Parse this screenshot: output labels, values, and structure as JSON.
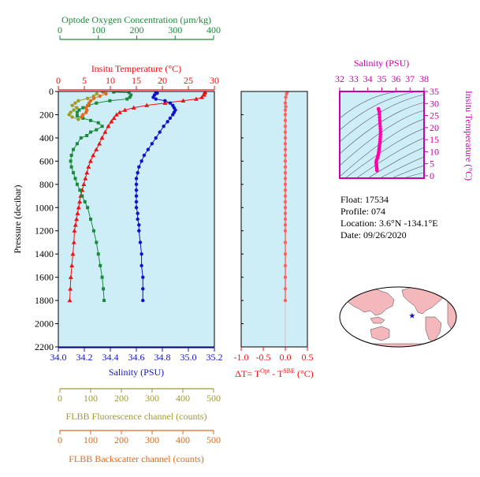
{
  "info": {
    "float": "Float:  17534",
    "profile": "Profile:  074",
    "location": "Location:  3.6°N  -134.1°E",
    "date": "Date:  09/26/2020"
  },
  "chart_data": [
    {
      "type": "line",
      "name": "profile",
      "ylabel": "Pressure (decibar)",
      "ylim": [
        2200,
        0
      ],
      "yticks": [
        0,
        200,
        400,
        600,
        800,
        1000,
        1200,
        1400,
        1600,
        1800,
        2000,
        2200
      ],
      "background": "#cdeef7",
      "axes": {
        "oxygen": {
          "label": "Optode Oxygen Concentration (µm/kg)",
          "lim": [
            0,
            400
          ],
          "ticks": [
            0,
            100,
            200,
            300,
            400
          ],
          "color": "#1a8a3a"
        },
        "temperature": {
          "label": "Insitu Temperature (°C)",
          "lim": [
            0,
            30
          ],
          "ticks": [
            0,
            5,
            10,
            15,
            20,
            25,
            30
          ],
          "color": "#ee1111"
        },
        "salinity": {
          "label": "Salinity (PSU)",
          "lim": [
            34.0,
            35.2
          ],
          "ticks": [
            "34.0",
            "34.2",
            "34.4",
            "34.6",
            "34.8",
            "35.0",
            "35.2"
          ],
          "color": "#1111cc"
        },
        "fluorescence": {
          "label": "FLBB Fluorescence channel (counts)",
          "lim": [
            0,
            500
          ],
          "ticks": [
            0,
            100,
            200,
            300,
            400,
            500
          ],
          "color": "#a09a2a"
        },
        "backscatter": {
          "label": "FLBB Backscatter channel (counts)",
          "lim": [
            0,
            500
          ],
          "ticks": [
            0,
            100,
            200,
            300,
            400,
            500
          ],
          "color": "#e06a1a"
        }
      },
      "series": [
        {
          "name": "Insitu Temperature",
          "axis": "temperature",
          "marker": "triangle",
          "points": [
            [
              28.2,
              5
            ],
            [
              28.1,
              15
            ],
            [
              28.0,
              30
            ],
            [
              27.6,
              50
            ],
            [
              26.5,
              65
            ],
            [
              24.0,
              80
            ],
            [
              20.5,
              100
            ],
            [
              17.0,
              120
            ],
            [
              14.5,
              140
            ],
            [
              12.8,
              160
            ],
            [
              11.8,
              180
            ],
            [
              11.2,
              200
            ],
            [
              10.7,
              230
            ],
            [
              10.2,
              260
            ],
            [
              9.6,
              300
            ],
            [
              9.0,
              350
            ],
            [
              8.4,
              400
            ],
            [
              7.9,
              450
            ],
            [
              7.3,
              500
            ],
            [
              6.7,
              550
            ],
            [
              6.2,
              600
            ],
            [
              5.8,
              650
            ],
            [
              5.5,
              700
            ],
            [
              5.2,
              750
            ],
            [
              4.9,
              800
            ],
            [
              4.6,
              850
            ],
            [
              4.3,
              900
            ],
            [
              4.1,
              950
            ],
            [
              3.9,
              1000
            ],
            [
              3.7,
              1050
            ],
            [
              3.5,
              1100
            ],
            [
              3.3,
              1150
            ],
            [
              3.1,
              1200
            ],
            [
              3.0,
              1300
            ],
            [
              2.8,
              1400
            ],
            [
              2.6,
              1500
            ],
            [
              2.4,
              1600
            ],
            [
              2.3,
              1700
            ],
            [
              2.2,
              1800
            ]
          ]
        },
        {
          "name": "Salinity",
          "axis": "salinity",
          "marker": "circle",
          "points": [
            [
              34.75,
              5
            ],
            [
              34.76,
              15
            ],
            [
              34.74,
              30
            ],
            [
              34.73,
              50
            ],
            [
              34.75,
              65
            ],
            [
              34.82,
              80
            ],
            [
              34.86,
              100
            ],
            [
              34.88,
              120
            ],
            [
              34.89,
              140
            ],
            [
              34.9,
              160
            ],
            [
              34.89,
              180
            ],
            [
              34.88,
              200
            ],
            [
              34.86,
              230
            ],
            [
              34.84,
              260
            ],
            [
              34.81,
              300
            ],
            [
              34.78,
              350
            ],
            [
              34.75,
              400
            ],
            [
              34.72,
              450
            ],
            [
              34.69,
              500
            ],
            [
              34.66,
              550
            ],
            [
              34.64,
              600
            ],
            [
              34.62,
              650
            ],
            [
              34.61,
              700
            ],
            [
              34.6,
              750
            ],
            [
              34.6,
              800
            ],
            [
              34.6,
              850
            ],
            [
              34.6,
              900
            ],
            [
              34.6,
              950
            ],
            [
              34.6,
              1000
            ],
            [
              34.61,
              1050
            ],
            [
              34.61,
              1100
            ],
            [
              34.62,
              1150
            ],
            [
              34.62,
              1200
            ],
            [
              34.63,
              1300
            ],
            [
              34.64,
              1400
            ],
            [
              34.64,
              1500
            ],
            [
              34.65,
              1600
            ],
            [
              34.65,
              1700
            ],
            [
              34.65,
              1800
            ]
          ]
        },
        {
          "name": "Optode Oxygen",
          "axis": "oxygen",
          "marker": "square",
          "points": [
            [
              140,
              5
            ],
            [
              180,
              10
            ],
            [
              185,
              30
            ],
            [
              182,
              50
            ],
            [
              175,
              65
            ],
            [
              130,
              80
            ],
            [
              95,
              100
            ],
            [
              75,
              120
            ],
            [
              60,
              140
            ],
            [
              50,
              160
            ],
            [
              45,
              180
            ],
            [
              45,
              210
            ],
            [
              60,
              230
            ],
            [
              80,
              250
            ],
            [
              100,
              270
            ],
            [
              110,
              300
            ],
            [
              95,
              330
            ],
            [
              80,
              350
            ],
            [
              70,
              380
            ],
            [
              55,
              400
            ],
            [
              45,
              450
            ],
            [
              35,
              500
            ],
            [
              30,
              550
            ],
            [
              28,
              600
            ],
            [
              30,
              650
            ],
            [
              35,
              700
            ],
            [
              40,
              750
            ],
            [
              45,
              800
            ],
            [
              52,
              850
            ],
            [
              58,
              900
            ],
            [
              65,
              950
            ],
            [
              72,
              1000
            ],
            [
              80,
              1100
            ],
            [
              88,
              1200
            ],
            [
              95,
              1300
            ],
            [
              100,
              1400
            ],
            [
              105,
              1500
            ],
            [
              110,
              1600
            ],
            [
              113,
              1700
            ],
            [
              115,
              1800
            ]
          ]
        },
        {
          "name": "FLBB Fluorescence",
          "axis": "fluorescence",
          "marker": "circle",
          "points": [
            [
              120,
              20
            ],
            [
              110,
              40
            ],
            [
              90,
              60
            ],
            [
              60,
              80
            ],
            [
              50,
              100
            ],
            [
              40,
              120
            ],
            [
              55,
              140
            ],
            [
              45,
              160
            ],
            [
              35,
              180
            ],
            [
              30,
              200
            ],
            [
              40,
              220
            ],
            [
              60,
              240
            ]
          ]
        },
        {
          "name": "FLBB Backscatter",
          "axis": "backscatter",
          "marker": "circle",
          "points": [
            [
              140,
              5
            ],
            [
              150,
              20
            ],
            [
              130,
              40
            ],
            [
              110,
              60
            ],
            [
              100,
              80
            ],
            [
              95,
              100
            ],
            [
              90,
              120
            ],
            [
              85,
              140
            ],
            [
              88,
              160
            ],
            [
              85,
              180
            ],
            [
              75,
              200
            ],
            [
              70,
              220
            ]
          ]
        }
      ]
    },
    {
      "type": "line",
      "name": "delta-t",
      "xlabel": "ΔT= T^Opt - T^SBE (°C)",
      "xlabel_parts": [
        "ΔT= T",
        "Opt",
        " - T",
        "SBE",
        " (°C)"
      ],
      "xlim": [
        -1.0,
        0.5
      ],
      "xticks": [
        "-1.0",
        "-0.5",
        "0.0",
        "0.5"
      ],
      "ylim": [
        2200,
        0
      ],
      "series": [
        {
          "name": "ΔT",
          "color": "#ff6060",
          "points": [
            [
              0.05,
              0
            ],
            [
              0.03,
              20
            ],
            [
              0.01,
              50
            ],
            [
              0.0,
              100
            ],
            [
              0.01,
              130
            ],
            [
              0.0,
              160
            ],
            [
              0.0,
              200
            ],
            [
              0.0,
              250
            ],
            [
              0.0,
              300
            ],
            [
              0.0,
              350
            ],
            [
              0.0,
              400
            ],
            [
              0.0,
              450
            ],
            [
              0.0,
              500
            ],
            [
              0.0,
              550
            ],
            [
              0.0,
              600
            ],
            [
              0.0,
              650
            ],
            [
              0.0,
              700
            ],
            [
              0.0,
              750
            ],
            [
              0.0,
              800
            ],
            [
              0.0,
              850
            ],
            [
              0.0,
              900
            ],
            [
              0.0,
              950
            ],
            [
              0.0,
              1000
            ],
            [
              0.0,
              1050
            ],
            [
              0.0,
              1100
            ],
            [
              0.0,
              1150
            ],
            [
              0.0,
              1200
            ],
            [
              0.0,
              1300
            ],
            [
              0.0,
              1400
            ],
            [
              0.0,
              1500
            ],
            [
              0.0,
              1600
            ],
            [
              0.0,
              1700
            ],
            [
              0.0,
              1800
            ]
          ]
        }
      ]
    },
    {
      "type": "scatter",
      "name": "ts-diagram",
      "xlabel": "Salinity (PSU)",
      "ylabel": "Insitu Temperature (°C)",
      "xlim": [
        32,
        38
      ],
      "xticks": [
        32,
        33,
        34,
        35,
        36,
        37,
        38
      ],
      "ylim": [
        -1,
        35
      ],
      "yticks": [
        0,
        5,
        10,
        15,
        20,
        25,
        30,
        35
      ],
      "color": "#ff00aa",
      "points": [
        [
          34.65,
          2.2
        ],
        [
          34.65,
          2.6
        ],
        [
          34.64,
          3.0
        ],
        [
          34.63,
          3.5
        ],
        [
          34.62,
          4.0
        ],
        [
          34.61,
          4.6
        ],
        [
          34.6,
          5.2
        ],
        [
          34.6,
          5.8
        ],
        [
          34.62,
          6.4
        ],
        [
          34.66,
          7.0
        ],
        [
          34.7,
          7.6
        ],
        [
          34.72,
          8.2
        ],
        [
          34.75,
          8.8
        ],
        [
          34.77,
          9.5
        ],
        [
          34.79,
          10.2
        ],
        [
          34.8,
          11.0
        ],
        [
          34.82,
          11.8
        ],
        [
          34.83,
          12.6
        ],
        [
          34.85,
          13.4
        ],
        [
          34.87,
          14.3
        ],
        [
          34.88,
          15.2
        ],
        [
          34.89,
          16.2
        ],
        [
          34.9,
          17.2
        ],
        [
          34.9,
          18.3
        ],
        [
          34.89,
          19.5
        ],
        [
          34.88,
          20.6
        ],
        [
          34.86,
          21.8
        ],
        [
          34.85,
          23.0
        ],
        [
          34.84,
          24.2
        ],
        [
          34.83,
          25.4
        ],
        [
          34.82,
          26.5
        ],
        [
          34.78,
          27.3
        ],
        [
          34.76,
          27.8
        ]
      ]
    }
  ],
  "map": {
    "marker": {
      "lon": -134.1,
      "lat": 3.6,
      "color": "#1111cc"
    },
    "land_color": "#f4b8bc",
    "ocean_color": "#ffffff"
  }
}
